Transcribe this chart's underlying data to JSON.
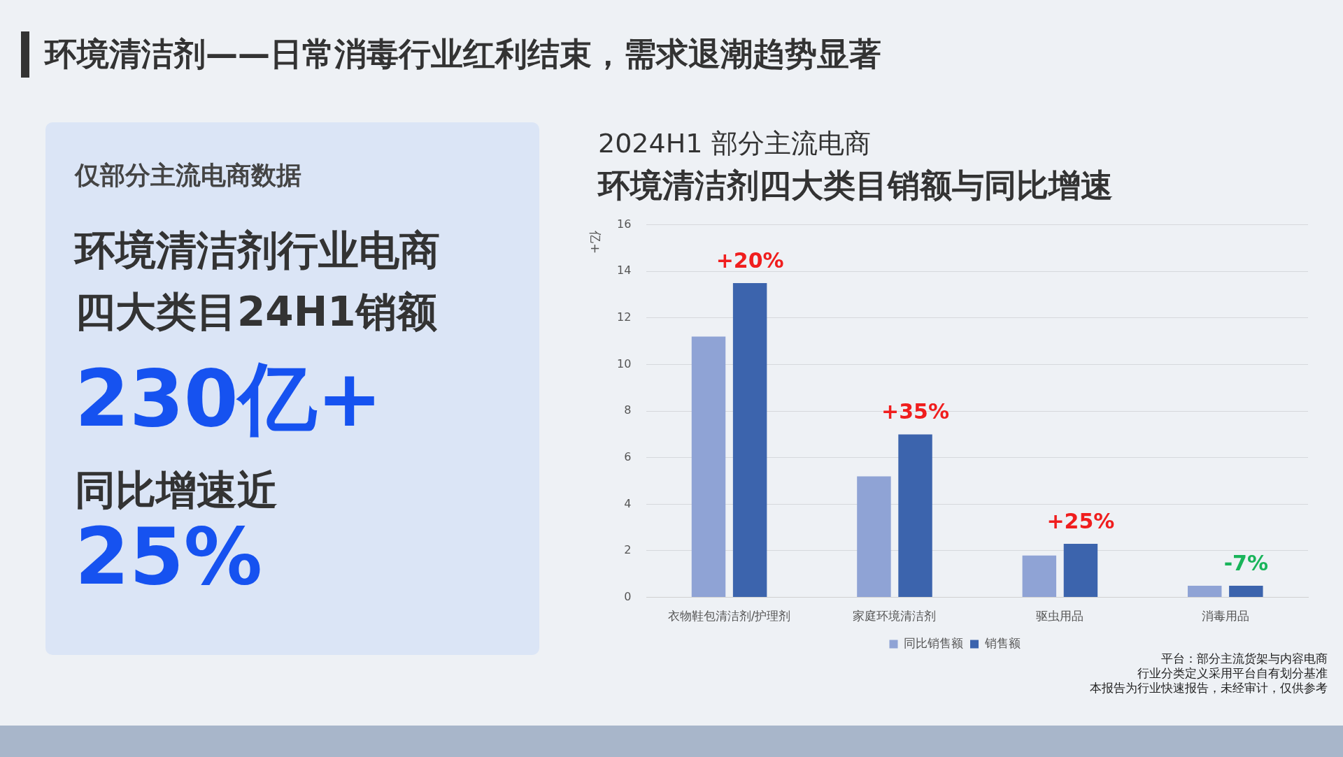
{
  "chart_data": [
    {
      "type": "other",
      "title": "环境清洁剂——日常消毒行业红利结束，需求退潮趋势显著",
      "annotations": [
        "仅部分主流电商数据",
        "环境清洁剂行业电商",
        "四大类目24H1销额",
        "230亿+",
        "同比增速近",
        "25%"
      ]
    },
    {
      "type": "bar",
      "title": "2024H1 部分主流电商",
      "subtitle": "环境清洁剂四大类目销额与同比增速",
      "ylabel": "亿+",
      "categories": [
        "衣物鞋包清洁剂/护理剂",
        "家庭环境清洁剂",
        "驱虫用品",
        "消毒用品"
      ],
      "series": [
        {
          "name": "同比销售额",
          "color": "#8fa3d5",
          "values": [
            11.2,
            5.2,
            1.8,
            0.5
          ]
        },
        {
          "name": "销售额",
          "color": "#3c64ad",
          "values": [
            13.5,
            7.0,
            2.3,
            0.5
          ]
        }
      ],
      "ylim": [
        0,
        16
      ],
      "yticks": [
        0,
        2,
        4,
        6,
        8,
        10,
        12,
        14,
        16
      ],
      "grid": "y",
      "legend": "bottom",
      "annotations": [
        "+20%",
        "+35%",
        "+25%",
        "-7%",
        "平台：部分主流货架与内容电商",
        "行业分类定义采用平台自有划分基准",
        "本报告为行业快速报告，未经审计，仅供参考"
      ]
    }
  ]
}
